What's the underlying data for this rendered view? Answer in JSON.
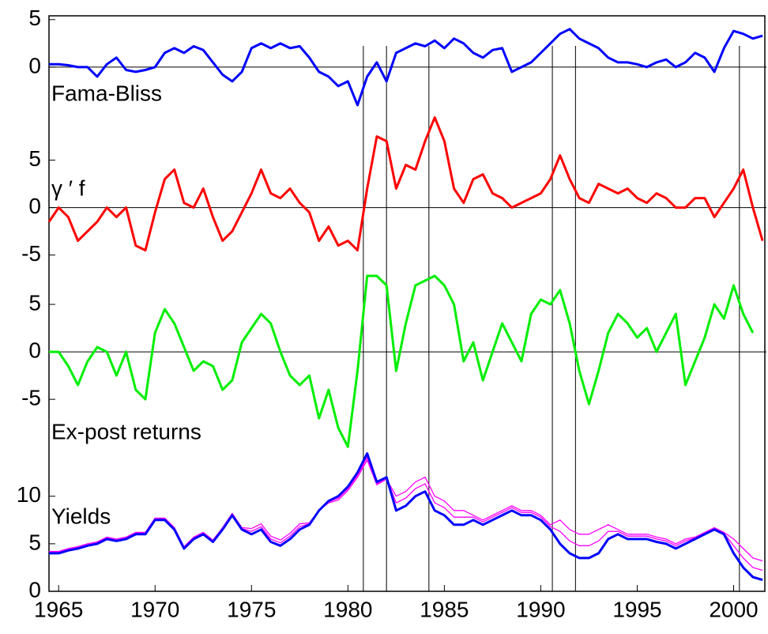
{
  "chart_data": [
    {
      "type": "line",
      "annotation": "Fama-Bliss",
      "xlim": [
        1964.5,
        2001.7
      ],
      "ylim": [
        -5,
        5.4
      ],
      "yticks": [
        0,
        5
      ],
      "zero_line": true,
      "event_lines": [
        1980.8,
        1982.0,
        1984.2,
        1990.6,
        1991.8,
        2000.3
      ],
      "x": [
        1964.5,
        1965,
        1965.5,
        1966,
        1966.5,
        1967,
        1967.5,
        1968,
        1968.5,
        1969,
        1969.5,
        1970,
        1970.5,
        1971,
        1971.5,
        1972,
        1972.5,
        1973,
        1973.5,
        1974,
        1974.5,
        1975,
        1975.5,
        1976,
        1976.5,
        1977,
        1977.5,
        1978,
        1978.5,
        1979,
        1979.5,
        1980,
        1980.5,
        1981,
        1981.5,
        1982,
        1982.5,
        1983,
        1983.5,
        1984,
        1984.5,
        1985,
        1985.5,
        1986,
        1986.5,
        1987,
        1987.5,
        1988,
        1988.5,
        1989,
        1989.5,
        1990,
        1990.5,
        1991,
        1991.5,
        1992,
        1992.5,
        1993,
        1993.5,
        1994,
        1994.5,
        1995,
        1995.5,
        1996,
        1996.5,
        1997,
        1997.5,
        1998,
        1998.5,
        1999,
        1999.5,
        2000,
        2000.5,
        2001,
        2001.5
      ],
      "series": [
        {
          "color": "#0000ff",
          "values": [
            0.3,
            0.3,
            0.2,
            0,
            0,
            -1,
            0.3,
            1,
            -0.3,
            -0.5,
            -0.3,
            0,
            1.5,
            2,
            1.5,
            2.2,
            1.8,
            0.5,
            -0.8,
            -1.5,
            -0.5,
            2,
            2.5,
            2,
            2.5,
            2,
            2.2,
            1,
            -0.5,
            -1,
            -2,
            -1.5,
            -4,
            -1,
            0.5,
            -1.5,
            1.5,
            2,
            2.5,
            2.2,
            2.8,
            2,
            3,
            2.5,
            1.5,
            1,
            1.8,
            2,
            -0.5,
            0,
            0.5,
            1.5,
            2.5,
            3.5,
            4,
            3,
            2.5,
            2,
            1,
            0.5,
            0.5,
            0.3,
            0,
            0.5,
            0.8,
            0,
            0.5,
            1.5,
            1,
            -0.5,
            2,
            3.8,
            3.5,
            3,
            3.3
          ]
        }
      ]
    },
    {
      "type": "line",
      "annotation": "γ ′ f",
      "xlim": [
        1964.5,
        2001.7
      ],
      "ylim": [
        -5.2,
        9.8
      ],
      "yticks": [
        -5,
        0,
        5
      ],
      "zero_line": true,
      "x": [
        1964.5,
        1965,
        1965.5,
        1966,
        1966.5,
        1967,
        1967.5,
        1968,
        1968.5,
        1969,
        1969.5,
        1970,
        1970.5,
        1971,
        1971.5,
        1972,
        1972.5,
        1973,
        1973.5,
        1974,
        1974.5,
        1975,
        1975.5,
        1976,
        1976.5,
        1977,
        1977.5,
        1978,
        1978.5,
        1979,
        1979.5,
        1980,
        1980.5,
        1981,
        1981.5,
        1982,
        1982.5,
        1983,
        1983.5,
        1984,
        1984.5,
        1985,
        1985.5,
        1986,
        1986.5,
        1987,
        1987.5,
        1988,
        1988.5,
        1989,
        1989.5,
        1990,
        1990.5,
        1991,
        1991.5,
        1992,
        1992.5,
        1993,
        1993.5,
        1994,
        1994.5,
        1995,
        1995.5,
        1996,
        1996.5,
        1997,
        1997.5,
        1998,
        1998.5,
        1999,
        1999.5,
        2000,
        2000.5,
        2001,
        2001.5
      ],
      "series": [
        {
          "color": "#ff0000",
          "values": [
            -1.5,
            0,
            -1,
            -3.5,
            -2.5,
            -1.5,
            0,
            -1,
            0,
            -4,
            -4.5,
            -0.5,
            3,
            4,
            0.5,
            0,
            2,
            -1,
            -3.5,
            -2.5,
            -0.5,
            1.5,
            4,
            1.5,
            1,
            2,
            0.5,
            -0.5,
            -3.5,
            -2,
            -4,
            -3.5,
            -4.5,
            2,
            7.5,
            7,
            2,
            4.5,
            4,
            7,
            9.5,
            7,
            2,
            0.5,
            3,
            3.5,
            1.5,
            1,
            0,
            0.5,
            1,
            1.5,
            3,
            5.5,
            3,
            1,
            0.5,
            2.5,
            2,
            1.5,
            2,
            1,
            0.5,
            1.5,
            1,
            0,
            0,
            1,
            1,
            -1,
            0.5,
            2,
            4,
            0,
            -3.5
          ]
        }
      ]
    },
    {
      "type": "line",
      "annotation": "Ex-post returns",
      "xlim": [
        1964.5,
        2001.7
      ],
      "ylim": [
        -10.4,
        10
      ],
      "yticks": [
        -5,
        0,
        5
      ],
      "zero_line": true,
      "x": [
        1964.5,
        1965,
        1965.5,
        1966,
        1966.5,
        1967,
        1967.5,
        1968,
        1968.5,
        1969,
        1969.5,
        1970,
        1970.5,
        1971,
        1971.5,
        1972,
        1972.5,
        1973,
        1973.5,
        1974,
        1974.5,
        1975,
        1975.5,
        1976,
        1976.5,
        1977,
        1977.5,
        1978,
        1978.5,
        1979,
        1979.5,
        1980,
        1980.5,
        1981,
        1981.5,
        1982,
        1982.5,
        1983,
        1983.5,
        1984,
        1984.5,
        1985,
        1985.5,
        1986,
        1986.5,
        1987,
        1987.5,
        1988,
        1988.5,
        1989,
        1989.5,
        1990,
        1990.5,
        1991,
        1991.5,
        1992,
        1992.5,
        1993,
        1993.5,
        1994,
        1994.5,
        1995,
        1995.5,
        1996,
        1996.5,
        1997,
        1997.5,
        1998,
        1998.5,
        1999,
        1999.5,
        2000,
        2000.5,
        2001,
        2001.5
      ],
      "series": [
        {
          "color": "#00ee00",
          "values": [
            0,
            0,
            -1.5,
            -3.5,
            -1,
            0.5,
            0,
            -2.5,
            0,
            -4,
            -5,
            2,
            4.5,
            3,
            0.5,
            -2,
            -1,
            -1.5,
            -4,
            -3,
            1,
            2.5,
            4,
            3,
            0,
            -2.5,
            -3.5,
            -2.5,
            -7,
            -4,
            -8,
            -10,
            -2,
            8,
            8,
            7,
            -2,
            3,
            7,
            7.5,
            8,
            7,
            5,
            -1,
            1,
            -3,
            0,
            3,
            1,
            -1,
            4,
            5.5,
            5,
            6.5,
            3,
            -2,
            -5.5,
            -2,
            2,
            4,
            3,
            1.5,
            2.5,
            0,
            2,
            4,
            -3.5,
            -1,
            1.5,
            5,
            3.5,
            7,
            4,
            2,
            null
          ]
        }
      ]
    },
    {
      "type": "line",
      "annotation": "Yields",
      "xlim": [
        1964.5,
        2001.7
      ],
      "ylim": [
        0,
        14.8
      ],
      "yticks": [
        0,
        5,
        10
      ],
      "zero_line": false,
      "xticks": [
        1965,
        1970,
        1975,
        1980,
        1985,
        1990,
        1995,
        2000
      ],
      "x": [
        1964.5,
        1965,
        1965.5,
        1966,
        1966.5,
        1967,
        1967.5,
        1968,
        1968.5,
        1969,
        1969.5,
        1970,
        1970.5,
        1971,
        1971.5,
        1972,
        1972.5,
        1973,
        1973.5,
        1974,
        1974.5,
        1975,
        1975.5,
        1976,
        1976.5,
        1977,
        1977.5,
        1978,
        1978.5,
        1979,
        1979.5,
        1980,
        1980.5,
        1981,
        1981.5,
        1982,
        1982.5,
        1983,
        1983.5,
        1984,
        1984.5,
        1985,
        1985.5,
        1986,
        1986.5,
        1987,
        1987.5,
        1988,
        1988.5,
        1989,
        1989.5,
        1990,
        1990.5,
        1991,
        1991.5,
        1992,
        1992.5,
        1993,
        1993.5,
        1994,
        1994.5,
        1995,
        1995.5,
        1996,
        1996.5,
        1997,
        1997.5,
        1998,
        1998.5,
        1999,
        1999.5,
        2000,
        2000.5,
        2001,
        2001.5
      ],
      "series": [
        {
          "color": "#ff00ff",
          "values": [
            4.2,
            4.2,
            4.5,
            4.7,
            5,
            5.2,
            5.7,
            5.5,
            5.7,
            6.2,
            6.2,
            7.7,
            7.7,
            6.7,
            4.7,
            5.7,
            6.2,
            5.4,
            6.7,
            8.2,
            6.7,
            6.6,
            7.1,
            5.8,
            5.4,
            6.1,
            7.1,
            7.2,
            8.5,
            9.3,
            9.6,
            10.6,
            12,
            13.8,
            11.2,
            11.8,
            10,
            10.5,
            11.5,
            12,
            10,
            9.5,
            8.5,
            8.5,
            8,
            7.5,
            8,
            8.5,
            9,
            8.5,
            8.5,
            8,
            7,
            7.5,
            6.5,
            6,
            6,
            6.5,
            7,
            6.5,
            6,
            6,
            6,
            5.7,
            5.5,
            5,
            5.5,
            5.7,
            6.2,
            6.7,
            6.2,
            5.5,
            4.5,
            3.5,
            3.2
          ]
        },
        {
          "color": "#ff00ff",
          "values": [
            4.1,
            4.1,
            4.4,
            4.6,
            4.9,
            5.1,
            5.6,
            5.4,
            5.6,
            6.1,
            6.1,
            7.6,
            7.6,
            6.6,
            4.6,
            5.6,
            6.1,
            5.3,
            6.6,
            8.1,
            6.6,
            6.3,
            6.8,
            5.5,
            5.1,
            5.8,
            6.8,
            7.1,
            8.5,
            9.4,
            9.8,
            10.8,
            12.2,
            14.1,
            11.3,
            11.9,
            9.3,
            9.8,
            10.8,
            11.3,
            9.3,
            8.8,
            7.8,
            7.8,
            7.8,
            7.3,
            7.8,
            8.3,
            8.8,
            8.3,
            8.3,
            7.8,
            6.8,
            6.3,
            5.3,
            4.8,
            4.8,
            5.3,
            6.3,
            6.3,
            5.8,
            5.8,
            5.8,
            5.5,
            5.3,
            4.8,
            5.3,
            5.6,
            6.1,
            6.6,
            6.1,
            4.8,
            3.5,
            2.5,
            2.2
          ]
        },
        {
          "color": "#0000ff",
          "values": [
            4,
            4,
            4.3,
            4.5,
            4.8,
            5,
            5.5,
            5.3,
            5.5,
            6,
            6,
            7.5,
            7.5,
            6.5,
            4.5,
            5.5,
            6,
            5.2,
            6.5,
            8,
            6.5,
            6,
            6.5,
            5.2,
            4.8,
            5.5,
            6.5,
            7,
            8.5,
            9.5,
            10,
            11,
            12.5,
            14.5,
            11.5,
            12,
            8.5,
            9,
            10,
            10.5,
            8.5,
            8,
            7,
            7,
            7.5,
            7,
            7.5,
            8,
            8.5,
            8,
            8,
            7.5,
            6.5,
            5,
            4,
            3.5,
            3.5,
            4,
            5.5,
            6,
            5.5,
            5.5,
            5.5,
            5.2,
            5,
            4.5,
            5,
            5.5,
            6,
            6.5,
            6,
            4,
            2.5,
            1.5,
            1.2
          ]
        }
      ]
    }
  ]
}
